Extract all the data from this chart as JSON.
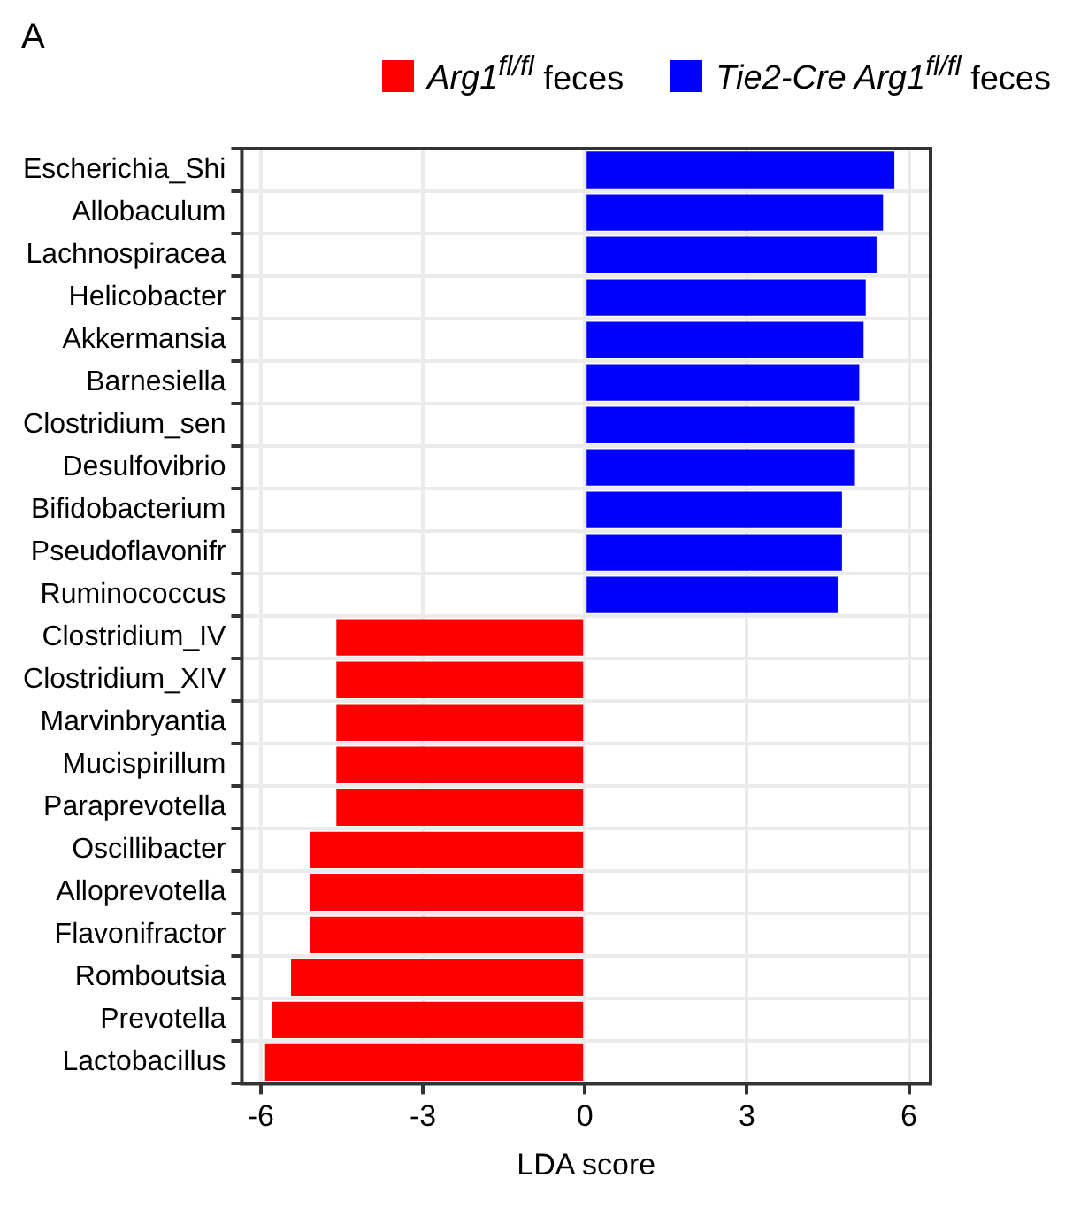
{
  "chart_data": {
    "type": "bar",
    "orientation": "horizontal",
    "title": "A",
    "xlabel": "LDA score",
    "categories": [
      "Escherichia_Shi",
      "Allobaculum",
      "Lachnospiracea",
      "Helicobacter",
      "Akkermansia",
      "Barnesiella",
      "Clostridium_sen",
      "Desulfovibrio",
      "Bifidobacterium",
      "Pseudoflavonifr",
      "Ruminococcus",
      "Clostridium_IV",
      "Clostridium_XIV",
      "Marvinbryantia",
      "Mucispirillum",
      "Paraprevotella",
      "Oscillibacter",
      "Alloprevotella",
      "Flavonifractor",
      "Romboutsia",
      "Prevotella",
      "Lactobacillus"
    ],
    "series": [
      {
        "name": "Arg1$^{fl/fl}$ feces",
        "color": "#ff0000",
        "values": [
          null,
          null,
          null,
          null,
          null,
          null,
          null,
          null,
          null,
          null,
          null,
          -4.6,
          -4.6,
          -4.6,
          -4.6,
          -4.6,
          -5.08,
          -5.08,
          -5.08,
          -5.44,
          -5.8,
          -5.92
        ]
      },
      {
        "name": "Tie2-Cre Arg1$^{fl/fl}$ feces",
        "color": "#0000ff",
        "values": [
          5.73,
          5.52,
          5.4,
          5.2,
          5.16,
          5.08,
          5.0,
          5.0,
          4.76,
          4.76,
          4.68,
          null,
          null,
          null,
          null,
          null,
          null,
          null,
          null,
          null,
          null,
          null
        ]
      }
    ],
    "xlim": [
      -6.35,
      6.4
    ],
    "xticks": [
      -6,
      -3,
      0,
      3,
      6
    ],
    "grid": true,
    "legend": "top"
  }
}
